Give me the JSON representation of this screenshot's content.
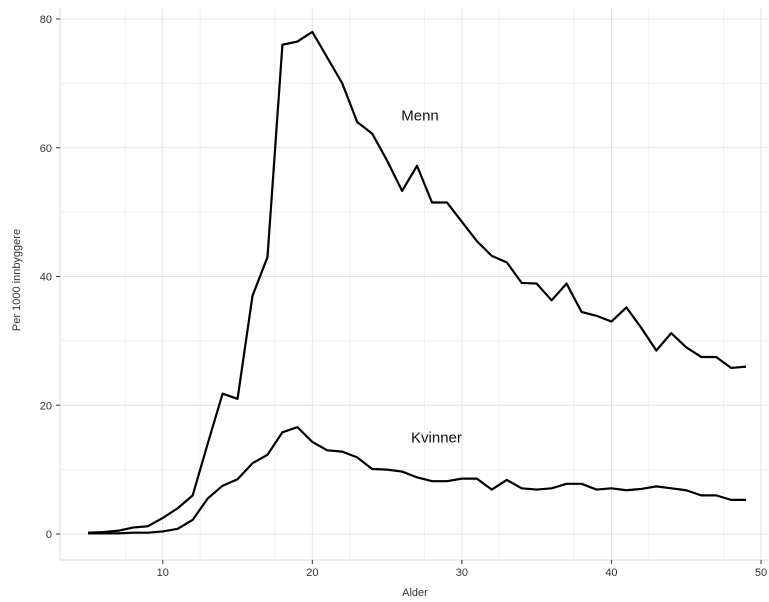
{
  "chart_data": {
    "type": "line",
    "title": "",
    "xlabel": "Alder",
    "ylabel": "Per 1000 innbyggere",
    "xlim": [
      5,
      49
    ],
    "ylim": [
      0,
      78
    ],
    "xticks": [
      10,
      20,
      30,
      40,
      50
    ],
    "yticks": [
      0,
      20,
      40,
      60,
      80
    ],
    "grid": true,
    "legend": "none",
    "line_color": "#000000",
    "x": [
      5,
      6,
      7,
      8,
      9,
      10,
      11,
      12,
      13,
      14,
      15,
      16,
      17,
      18,
      19,
      20,
      21,
      22,
      23,
      24,
      25,
      26,
      27,
      28,
      29,
      30,
      31,
      32,
      33,
      34,
      35,
      36,
      37,
      38,
      39,
      40,
      41,
      42,
      43,
      44,
      45,
      46,
      47,
      48,
      49
    ],
    "series": [
      {
        "name": "Menn",
        "values": [
          0.2,
          0.3,
          0.5,
          1.0,
          1.2,
          2.5,
          4.0,
          6.0,
          14.0,
          21.8,
          21.0,
          37.0,
          43.0,
          76.0,
          76.5,
          78.0,
          74.0,
          70.0,
          64.0,
          62.2,
          58.0,
          53.3,
          57.2,
          51.5,
          51.5,
          48.5,
          45.5,
          43.2,
          42.2,
          39.0,
          38.9,
          36.3,
          38.9,
          34.5,
          33.9,
          33.0,
          35.2,
          32.0,
          28.5,
          31.2,
          29.0,
          27.5,
          27.5,
          25.8,
          26.0
        ]
      },
      {
        "name": "Kvinner",
        "values": [
          0.1,
          0.1,
          0.1,
          0.2,
          0.2,
          0.4,
          0.8,
          2.2,
          5.5,
          7.5,
          8.5,
          11.0,
          12.3,
          15.8,
          16.6,
          14.3,
          13.0,
          12.8,
          11.9,
          10.1,
          10.0,
          9.7,
          8.8,
          8.2,
          8.2,
          8.6,
          8.6,
          6.9,
          8.4,
          7.1,
          6.9,
          7.1,
          7.8,
          7.8,
          6.9,
          7.1,
          6.8,
          7.0,
          7.4,
          7.1,
          6.8,
          6.0,
          6.0,
          5.3,
          5.3
        ]
      }
    ]
  }
}
